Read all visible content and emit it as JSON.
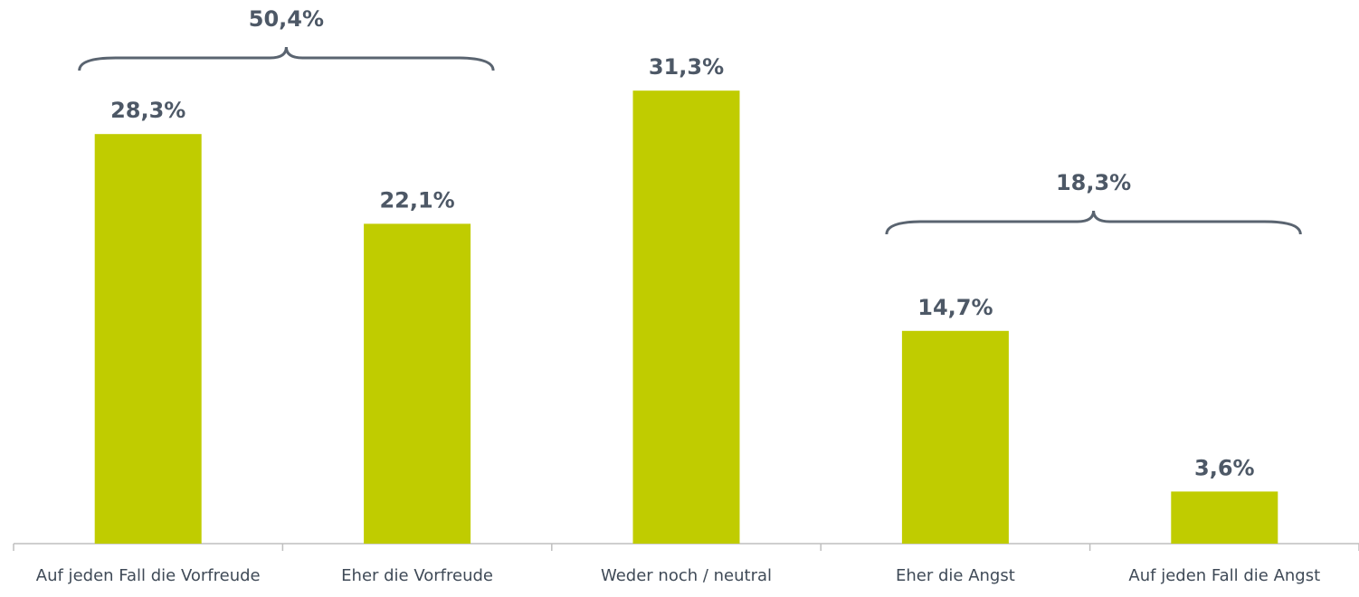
{
  "chart_data": {
    "type": "bar",
    "categories": [
      "Auf jeden Fall die Vorfreude",
      "Eher die Vorfreude",
      "Weder noch / neutral",
      "Eher die Angst",
      "Auf jeden Fall die Angst"
    ],
    "values": [
      28.3,
      22.1,
      31.3,
      14.7,
      3.6
    ],
    "value_labels": [
      "28,3%",
      "22,1%",
      "31,3%",
      "14,7%",
      "3,6%"
    ],
    "color": "#c0cc00",
    "annotations": [
      {
        "label": "50,4%",
        "value": 50.4,
        "spans": [
          0,
          1
        ]
      },
      {
        "label": "18,3%",
        "value": 18.3,
        "spans": [
          3,
          4
        ]
      }
    ]
  }
}
